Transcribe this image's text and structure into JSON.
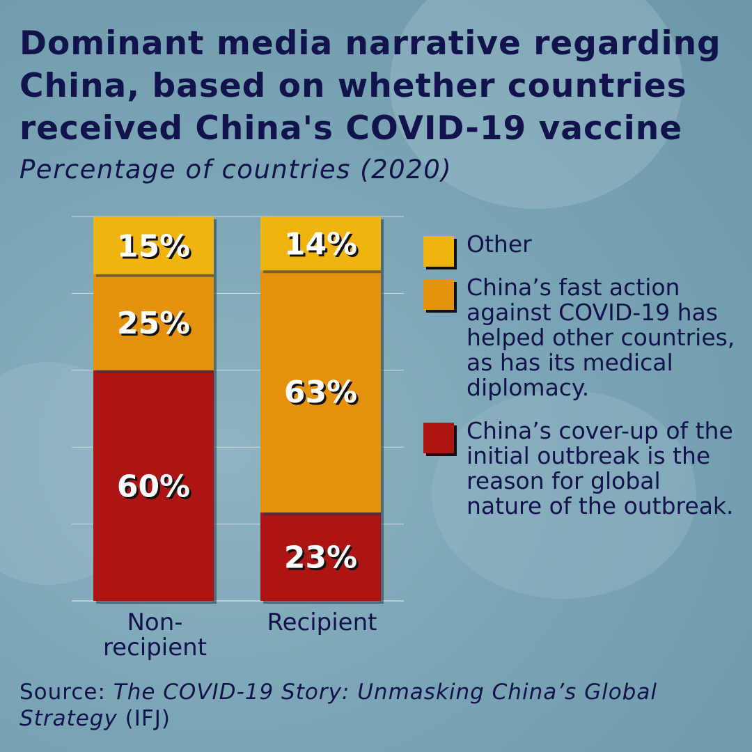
{
  "chart_data": {
    "type": "bar",
    "stacked": true,
    "title": "Dominant media narrative regarding\nChina, based on whether countries\nreceived China's COVID-19 vaccine",
    "subtitle": "Percentage of countries (2020)",
    "categories": [
      "Non-recipient",
      "Recipient"
    ],
    "category_lines": [
      [
        "Non-",
        "recipient"
      ],
      [
        "Recipient"
      ]
    ],
    "ylim": [
      0,
      100
    ],
    "grid": true,
    "legend_position": "right",
    "series": [
      {
        "name": "China’s cover-up of the initial outbreak is the reason for global nature of the outbreak.",
        "values": [
          60,
          23
        ],
        "labels": [
          "60%",
          "23%"
        ],
        "color": "#ad1414"
      },
      {
        "name": "China’s fast action against COVID-19 has helped other countries, as has its medical diplomacy.",
        "values": [
          25,
          63
        ],
        "labels": [
          "25%",
          "63%"
        ],
        "color": "#e4920e"
      },
      {
        "name": "Other",
        "values": [
          15,
          14
        ],
        "labels": [
          "15%",
          "14%"
        ],
        "color": "#f0b40f"
      }
    ]
  },
  "legend": [
    {
      "label": "Other",
      "color": "#f0b40f"
    },
    {
      "label": "China’s fast action against COVID-19 has helped other countries, as has its medical diplomacy.",
      "color": "#e4920e"
    },
    {
      "label": "China’s cover-up of the initial outbreak is the reason for global nature of the outbreak.",
      "color": "#ad1414"
    }
  ],
  "source": {
    "prefix": "Source: ",
    "title": "The COVID-19 Story: Unmasking China’s Global Strategy",
    "suffix": " (IFJ)"
  },
  "colors": {
    "text": "#12124d",
    "background": "#7aa5b5"
  }
}
